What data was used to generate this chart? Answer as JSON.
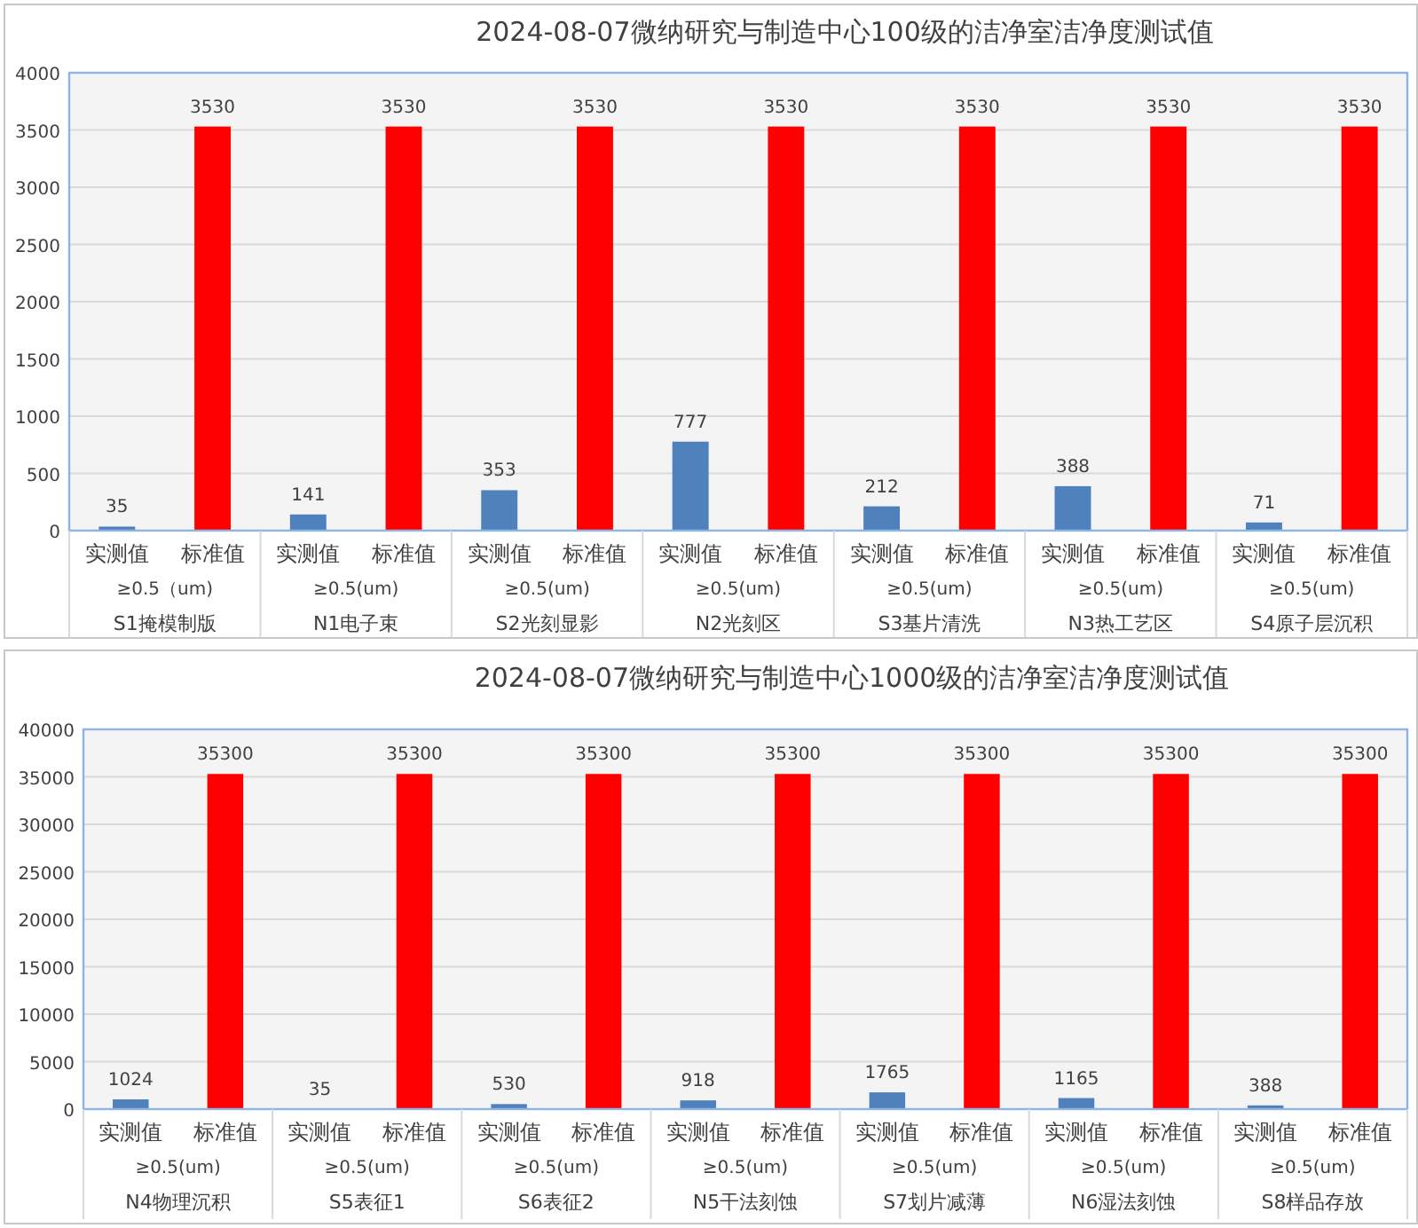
{
  "chart_data": [
    {
      "type": "bar",
      "title": "2024-08-07微纳研究与制造中心100级的洁净室洁净度测试值",
      "categories": [
        "实测值",
        "标准值",
        "实测值",
        "标准值",
        "实测值",
        "标准值",
        "实测值",
        "标准值",
        "实测值",
        "标准值",
        "实测值",
        "标准值",
        "实测值",
        "标准值"
      ],
      "values": [
        35,
        3530,
        141,
        3530,
        353,
        3530,
        777,
        3530,
        212,
        3530,
        388,
        3530,
        71,
        3530
      ],
      "colors": [
        "#4f81bd",
        "#ff0000",
        "#4f81bd",
        "#ff0000",
        "#4f81bd",
        "#ff0000",
        "#4f81bd",
        "#ff0000",
        "#4f81bd",
        "#ff0000",
        "#4f81bd",
        "#ff0000",
        "#4f81bd",
        "#ff0000"
      ],
      "ylim": [
        0,
        4000
      ],
      "yticks": [
        0,
        500,
        1000,
        1500,
        2000,
        2500,
        3000,
        3500,
        4000
      ],
      "grid": "y",
      "data_labels": true,
      "annotations": [
        "≥0.5（um)",
        "S1掩模制版",
        "≥0.5(um)",
        "N1电子束",
        "≥0.5(um)",
        "S2光刻显影",
        "≥0.5(um)",
        "N2光刻区",
        "≥0.5(um)",
        "S3基片清洗",
        "≥0.5(um)",
        "N3热工艺区",
        "≥0.5(um)",
        "S4原子层沉积"
      ]
    },
    {
      "type": "bar",
      "title": "2024-08-07微纳研究与制造中心1000级的洁净室洁净度测试值",
      "categories": [
        "实测值",
        "标准值",
        "实测值",
        "标准值",
        "实测值",
        "标准值",
        "实测值",
        "标准值",
        "实测值",
        "标准值",
        "实测值",
        "标准值",
        "实测值",
        "标准值"
      ],
      "values": [
        1024,
        35300,
        35,
        35300,
        530,
        35300,
        918,
        35300,
        1765,
        35300,
        1165,
        35300,
        388,
        35300
      ],
      "colors": [
        "#4f81bd",
        "#ff0000",
        "#4f81bd",
        "#ff0000",
        "#4f81bd",
        "#ff0000",
        "#4f81bd",
        "#ff0000",
        "#4f81bd",
        "#ff0000",
        "#4f81bd",
        "#ff0000",
        "#4f81bd",
        "#ff0000"
      ],
      "ylim": [
        0,
        40000
      ],
      "yticks": [
        0,
        5000,
        10000,
        15000,
        20000,
        25000,
        30000,
        35000,
        40000
      ],
      "grid": "y",
      "data_labels": true,
      "annotations": [
        "≥0.5(um)",
        "N4物理沉积",
        "≥0.5(um)",
        "S5表征1",
        "≥0.5(um)",
        "S6表征2",
        "≥0.5(um)",
        "N5干法刻蚀",
        "≥0.5(um)",
        "S7划片减薄",
        "≥0.5(um)",
        "N6湿法刻蚀",
        "≥0.5(um)",
        "S8样品存放"
      ]
    }
  ]
}
